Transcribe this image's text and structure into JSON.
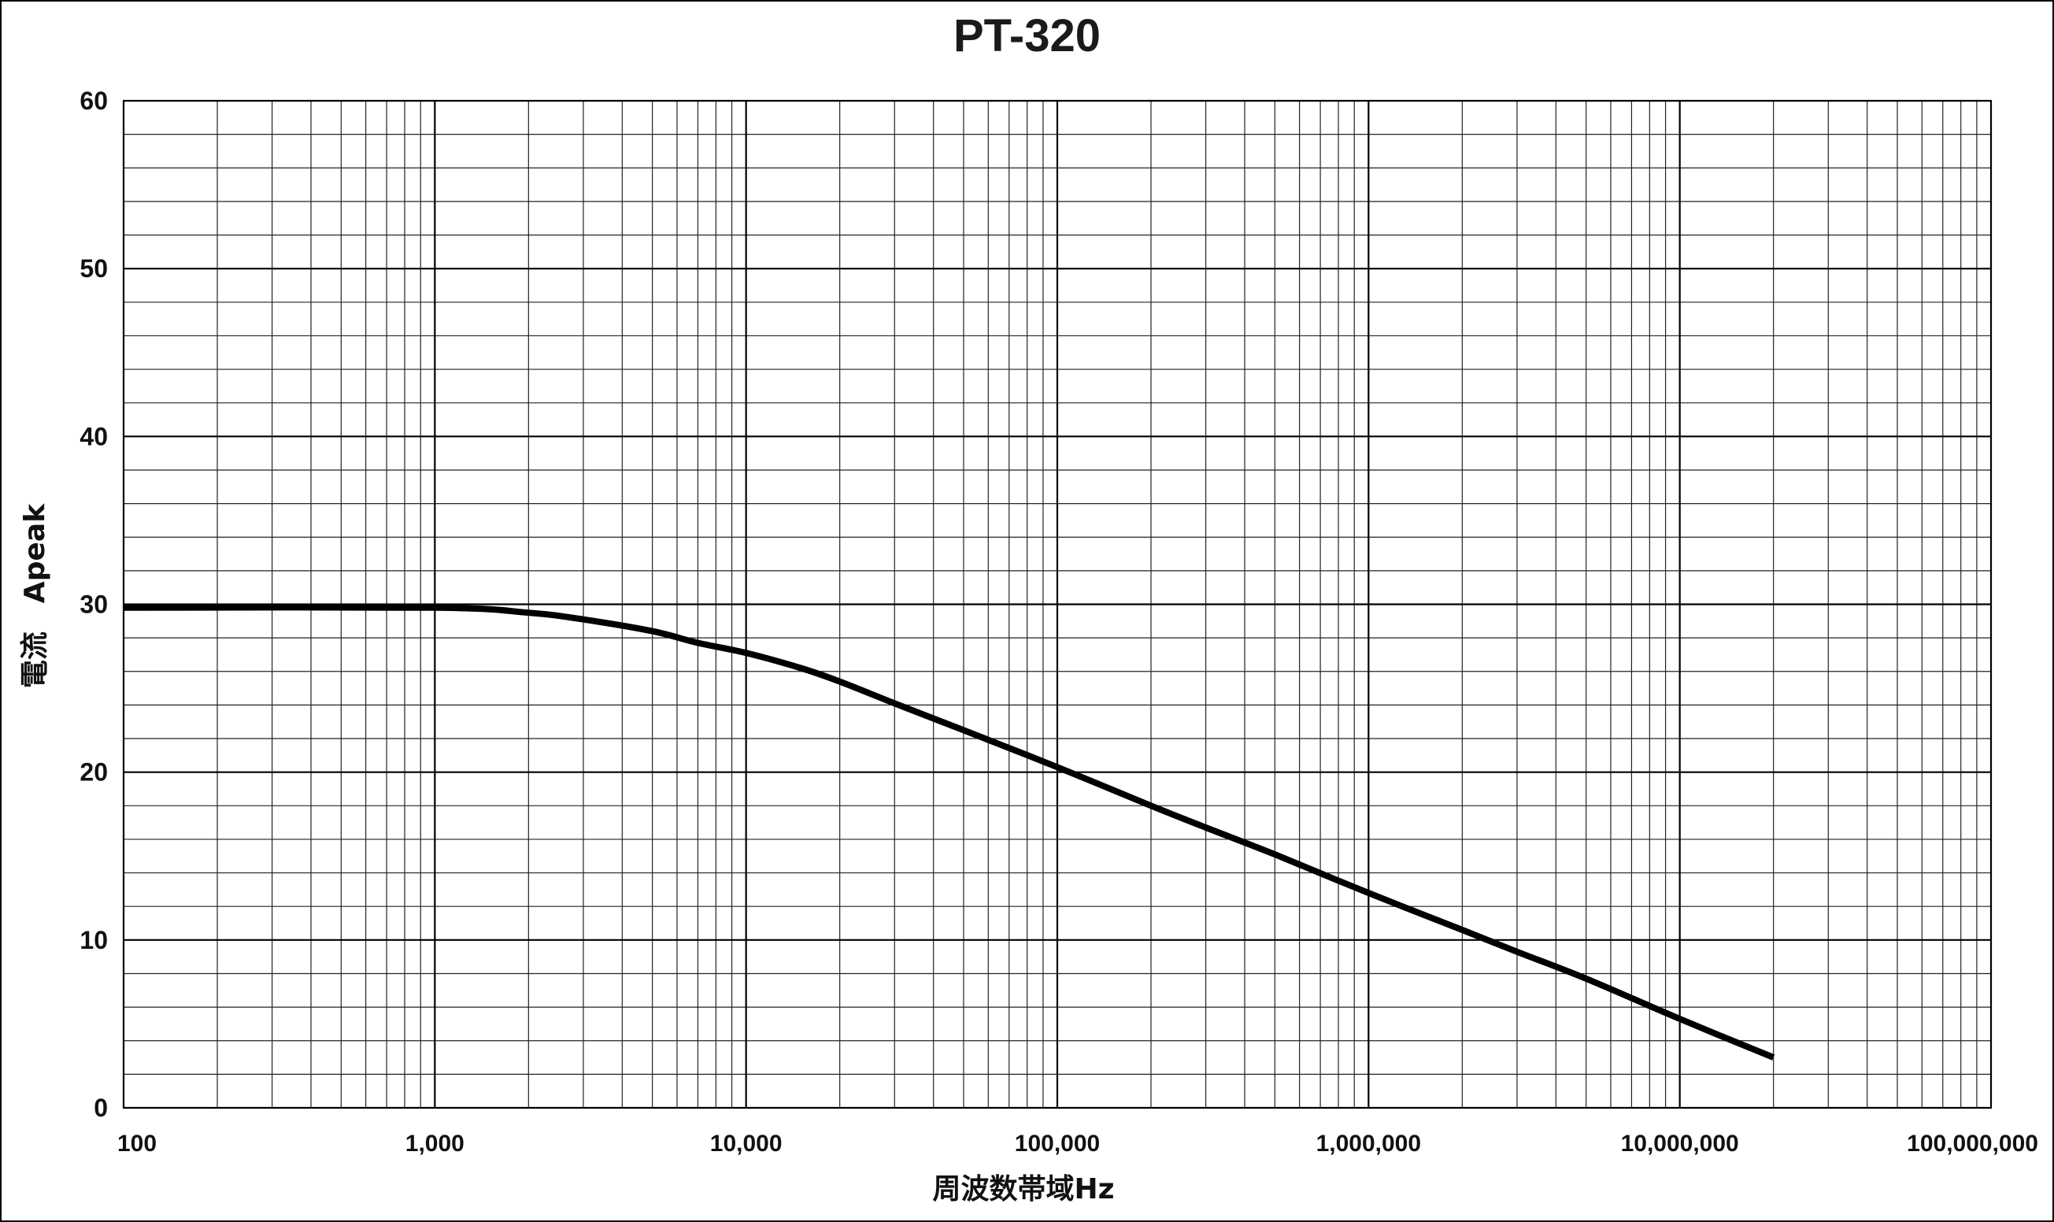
{
  "chart_data": {
    "type": "line",
    "title": "PT-320",
    "xlabel": "周波数帯域Hz",
    "ylabel": "電流　Apeak",
    "xscale": "log",
    "xlim": [
      100,
      100000000
    ],
    "ylim": [
      0,
      60
    ],
    "grid": true,
    "x_tick_labels": [
      "100",
      "1,000",
      "10,000",
      "100,000",
      "1,000,000",
      "10,000,000",
      "100,000,000"
    ],
    "y_tick_labels": [
      "0",
      "10",
      "20",
      "30",
      "40",
      "50",
      "60"
    ],
    "series": [
      {
        "color": "#000000",
        "points": [
          [
            100,
            29.8
          ],
          [
            1000,
            29.8
          ],
          [
            2000,
            29.5
          ],
          [
            3000,
            29.1
          ],
          [
            5000,
            28.4
          ],
          [
            7000,
            27.7
          ],
          [
            10000,
            27.1
          ],
          [
            15000,
            26.2
          ],
          [
            20000,
            25.4
          ],
          [
            30000,
            24.1
          ],
          [
            50000,
            22.5
          ],
          [
            100000,
            20.3
          ],
          [
            200000,
            18.0
          ],
          [
            300000,
            16.7
          ],
          [
            500000,
            15.1
          ],
          [
            1000000,
            12.8
          ],
          [
            2000000,
            10.6
          ],
          [
            3000000,
            9.3
          ],
          [
            5000000,
            7.7
          ],
          [
            10000000,
            5.3
          ],
          [
            20000000,
            3.0
          ]
        ]
      }
    ]
  }
}
